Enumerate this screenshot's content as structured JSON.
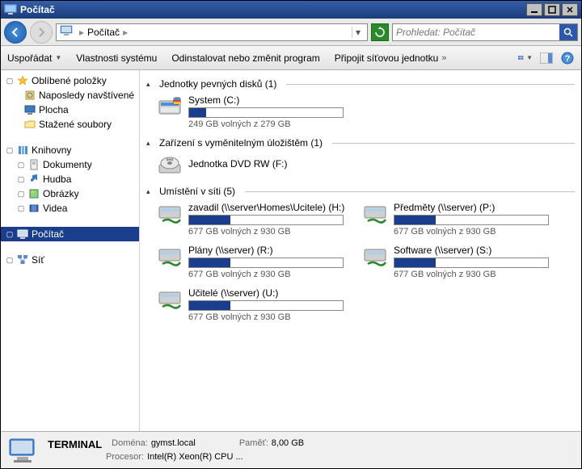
{
  "window": {
    "title": "Počítač"
  },
  "nav": {
    "address": "Počítač",
    "search_placeholder": "Prohledat: Počítač"
  },
  "toolbar": {
    "organize": "Uspořádat",
    "properties": "Vlastnosti systému",
    "uninstall": "Odinstalovat nebo změnit program",
    "mapnet": "Připojit síťovou jednotku"
  },
  "sidebar": {
    "favorites": "Oblíbené položky",
    "recent": "Naposledy navštívené",
    "desktop": "Plocha",
    "downloads": "Stažené soubory",
    "libraries": "Knihovny",
    "documents": "Dokumenty",
    "music": "Hudba",
    "pictures": "Obrázky",
    "videos": "Videa",
    "computer": "Počítač",
    "network": "Síť"
  },
  "sections": {
    "hdd": "Jednotky pevných disků (1)",
    "removable": "Zařízení s vyměnitelným úložištěm (1)",
    "network": "Umístění v síti (5)"
  },
  "drives": {
    "system": {
      "name": "System (C:)",
      "free": "249 GB volných z 279 GB",
      "fill_pct": 11
    },
    "dvd": {
      "name": "Jednotka DVD RW (F:)"
    },
    "zavadil": {
      "name": "zavadil (\\\\server\\Homes\\Ucitele) (H:)",
      "free": "677 GB volných z 930 GB",
      "fill_pct": 27
    },
    "predmety": {
      "name": "Předměty (\\\\server) (P:)",
      "free": "677 GB volných z 930 GB",
      "fill_pct": 27
    },
    "plany": {
      "name": "Plány (\\\\server) (R:)",
      "free": "677 GB volných z 930 GB",
      "fill_pct": 27
    },
    "software": {
      "name": "Software (\\\\server) (S:)",
      "free": "677 GB volných z 930 GB",
      "fill_pct": 27
    },
    "ucitele": {
      "name": "Učitelé (\\\\server) (U:)",
      "free": "677 GB volných z 930 GB",
      "fill_pct": 27
    }
  },
  "status": {
    "name": "TERMINAL",
    "domain_label": "Doména:",
    "domain": "gymst.local",
    "memory_label": "Paměť:",
    "memory": "8,00 GB",
    "cpu_label": "Procesor:",
    "cpu": "Intel(R) Xeon(R) CPU   ..."
  },
  "colors": {
    "accent": "#1b3e8c",
    "titlebar_start": "#335ea8",
    "titlebar_end": "#1a3e7a",
    "bar_border": "#888888"
  }
}
